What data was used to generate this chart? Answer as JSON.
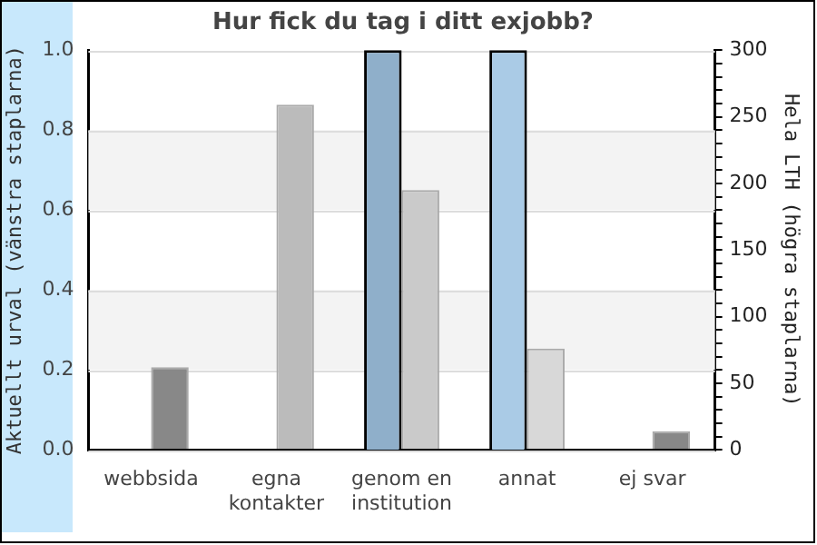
{
  "chart_data": {
    "type": "bar",
    "title": "Hur fick du tag i ditt exjobb?",
    "ylabel": "Aktuellt urval (vänstra staplarna)",
    "y2label": "Hela LTH (högra staplarna)",
    "categories": [
      "webbsida",
      "egna kontakter",
      "genom en institution",
      "annat",
      "ej svar"
    ],
    "series": [
      {
        "axis": "y",
        "values": [
          0,
          0,
          1,
          1,
          0
        ],
        "colors": [
          "#8fafca",
          "#aacbe6",
          "#8fafca",
          "#aacbe6",
          "#8fafca"
        ]
      },
      {
        "axis": "y2",
        "values": [
          62,
          259,
          195,
          76,
          14
        ],
        "colors": [
          "#888888",
          "#bbbbbb",
          "#cacaca",
          "#d8d8d8",
          "#888888"
        ]
      }
    ],
    "ylim": [
      0,
      1
    ],
    "yticks": [
      {
        "value": 0,
        "label": "0.0"
      },
      {
        "value": 0.2,
        "label": "0.2"
      },
      {
        "value": 0.4,
        "label": "0.4"
      },
      {
        "value": 0.6,
        "label": "0.6"
      },
      {
        "value": 0.8,
        "label": "0.8"
      },
      {
        "value": 1,
        "label": "1.0"
      }
    ],
    "y2lim": [
      0,
      300
    ],
    "y2ticks": [
      0,
      {
        "value": 10,
        "label": null
      },
      {
        "value": 20,
        "label": null
      },
      {
        "value": 30,
        "label": null
      },
      {
        "value": 40,
        "label": null
      },
      50,
      {
        "value": 60,
        "label": null
      },
      {
        "value": 70,
        "label": null
      },
      {
        "value": 80,
        "label": null
      },
      {
        "value": 90,
        "label": null
      },
      100,
      {
        "value": 110,
        "label": null
      },
      {
        "value": 120,
        "label": null
      },
      {
        "value": 130,
        "label": null
      },
      {
        "value": 140,
        "label": null
      },
      150,
      {
        "value": 160,
        "label": null
      },
      {
        "value": 170,
        "label": null
      },
      {
        "value": 180,
        "label": null
      },
      {
        "value": 190,
        "label": null
      },
      200,
      {
        "value": 210,
        "label": null
      },
      {
        "value": 220,
        "label": null
      },
      {
        "value": 230,
        "label": null
      },
      {
        "value": 240,
        "label": null
      },
      250,
      {
        "value": 260,
        "label": null
      },
      {
        "value": 270,
        "label": null
      },
      {
        "value": 280,
        "label": null
      },
      {
        "value": 290,
        "label": null
      },
      300
    ],
    "bands": [
      {
        "axis": "y",
        "from": 0.2,
        "to": 0.4,
        "color": "#f3f3f3"
      },
      {
        "axis": "y",
        "from": 0.6,
        "to": 0.8,
        "color": "#f3f3f3"
      }
    ],
    "grid": "y",
    "legend": false
  }
}
